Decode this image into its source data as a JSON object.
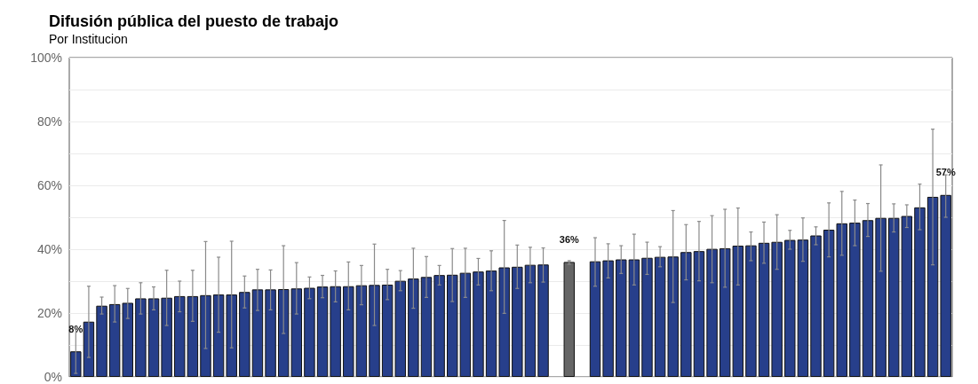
{
  "chart_data": {
    "type": "bar",
    "title": "Difusión pública del puesto de trabajo",
    "subtitle": "Por Institucion",
    "categories": [
      null,
      null,
      null,
      null,
      null,
      null,
      null,
      null,
      null,
      null,
      null,
      null,
      null,
      null,
      null,
      null,
      null,
      null,
      null,
      null,
      null,
      null,
      null,
      null,
      null,
      null,
      null,
      null,
      null,
      null,
      null,
      null,
      null,
      null,
      null,
      null,
      null,
      null,
      null,
      null,
      null,
      null,
      null,
      null,
      null,
      null,
      null,
      null,
      null,
      null,
      null,
      null,
      null,
      null,
      null,
      null,
      null,
      null,
      null,
      null,
      null,
      null,
      null,
      null,
      null,
      null,
      null,
      null
    ],
    "values": [
      8,
      17.3,
      22.3,
      22.8,
      23.2,
      24.6,
      24.6,
      24.8,
      25.3,
      25.3,
      25.6,
      25.8,
      25.8,
      26.6,
      27.4,
      27.4,
      27.5,
      27.7,
      27.9,
      28.3,
      28.4,
      28.4,
      28.7,
      28.8,
      28.9,
      30.1,
      30.8,
      31.3,
      31.9,
      32.0,
      32.6,
      33.0,
      33.3,
      34.3,
      34.5,
      35.1,
      35.2,
      null,
      36,
      null,
      36.2,
      36.5,
      36.8,
      36.8,
      37.3,
      37.6,
      37.7,
      39.1,
      39.4,
      40.1,
      40.3,
      41.1,
      41.2,
      42.0,
      42.3,
      42.9,
      43.0,
      44.3,
      46.1,
      48.1,
      48.3,
      49.1,
      49.8,
      49.8,
      50.4,
      53.1,
      56.4,
      57
    ],
    "colors": [
      "#273f8b",
      "#273f8b",
      "#273f8b",
      "#273f8b",
      "#273f8b",
      "#273f8b",
      "#273f8b",
      "#273f8b",
      "#273f8b",
      "#273f8b",
      "#273f8b",
      "#273f8b",
      "#273f8b",
      "#273f8b",
      "#273f8b",
      "#273f8b",
      "#273f8b",
      "#273f8b",
      "#273f8b",
      "#273f8b",
      "#273f8b",
      "#273f8b",
      "#273f8b",
      "#273f8b",
      "#273f8b",
      "#273f8b",
      "#273f8b",
      "#273f8b",
      "#273f8b",
      "#273f8b",
      "#273f8b",
      "#273f8b",
      "#273f8b",
      "#273f8b",
      "#273f8b",
      "#273f8b",
      "#273f8b",
      null,
      "#666666",
      null,
      "#273f8b",
      "#273f8b",
      "#273f8b",
      "#273f8b",
      "#273f8b",
      "#273f8b",
      "#273f8b",
      "#273f8b",
      "#273f8b",
      "#273f8b",
      "#273f8b",
      "#273f8b",
      "#273f8b",
      "#273f8b",
      "#273f8b",
      "#273f8b",
      "#273f8b",
      "#273f8b",
      "#273f8b",
      "#273f8b",
      "#273f8b",
      "#273f8b",
      "#273f8b",
      "#273f8b",
      "#273f8b",
      "#273f8b",
      "#273f8b",
      "#273f8b"
    ],
    "errors": [
      [
        1.1,
        15.2
      ],
      [
        6.1,
        28.4
      ],
      [
        19.7,
        25
      ],
      [
        17.2,
        28.6
      ],
      [
        18.3,
        27.7
      ],
      [
        19.7,
        29.5
      ],
      [
        21,
        28.2
      ],
      [
        16.1,
        33.4
      ],
      [
        20.4,
        30
      ],
      [
        17.4,
        33.4
      ],
      [
        8.9,
        42.4
      ],
      [
        14,
        37.5
      ],
      [
        9.1,
        42.5
      ],
      [
        21.6,
        31.6
      ],
      [
        20.8,
        33.7
      ],
      [
        21,
        33.5
      ],
      [
        13.6,
        41.1
      ],
      [
        19.7,
        35.8
      ],
      [
        24.5,
        31.3
      ],
      [
        24.8,
        31.8
      ],
      [
        23.5,
        33.2
      ],
      [
        21,
        36
      ],
      [
        22.6,
        34.9
      ],
      [
        16.1,
        41.6
      ],
      [
        24.2,
        33.7
      ],
      [
        27,
        33.3
      ],
      [
        21.5,
        40.3
      ],
      [
        24.9,
        37.7
      ],
      [
        28.8,
        34.9
      ],
      [
        23.6,
        40.2
      ],
      [
        24.9,
        40.3
      ],
      [
        28.8,
        37.1
      ],
      [
        27,
        39.5
      ],
      [
        19.9,
        49
      ],
      [
        27.7,
        41.3
      ],
      [
        29.5,
        40.6
      ],
      [
        29.7,
        40.4
      ],
      null,
      [
        35.3,
        36.4
      ],
      null,
      [
        28.4,
        43.6
      ],
      [
        31,
        41.7
      ],
      [
        32.4,
        41.1
      ],
      [
        28.8,
        44.7
      ],
      [
        32.1,
        42.2
      ],
      [
        34.5,
        40.8
      ],
      [
        23.3,
        52.1
      ],
      [
        30.4,
        47.7
      ],
      [
        30.1,
        48.7
      ],
      [
        29.5,
        50.5
      ],
      [
        28.1,
        52.5
      ],
      [
        28.8,
        52.9
      ],
      [
        36.4,
        45.4
      ],
      [
        35.6,
        48.5
      ],
      [
        33.7,
        50.8
      ],
      [
        40,
        45.9
      ],
      [
        36.2,
        49.8
      ],
      [
        41.4,
        47
      ],
      [
        37.6,
        54.5
      ],
      [
        38.1,
        58.1
      ],
      [
        41.1,
        55.4
      ],
      [
        44,
        54.3
      ],
      [
        33.1,
        66.4
      ],
      [
        45.4,
        54.2
      ],
      [
        46.8,
        53.9
      ],
      [
        46.1,
        60.4
      ],
      [
        35.1,
        77.6
      ],
      [
        50,
        63.3
      ]
    ],
    "value_labels": [
      "8%",
      null,
      null,
      null,
      null,
      null,
      null,
      null,
      null,
      null,
      null,
      null,
      null,
      null,
      null,
      null,
      null,
      null,
      null,
      null,
      null,
      null,
      null,
      null,
      null,
      null,
      null,
      null,
      null,
      null,
      null,
      null,
      null,
      null,
      null,
      null,
      null,
      null,
      "36%",
      null,
      null,
      null,
      null,
      null,
      null,
      null,
      null,
      null,
      null,
      null,
      null,
      null,
      null,
      null,
      null,
      null,
      null,
      null,
      null,
      null,
      null,
      null,
      null,
      null,
      null,
      null,
      null,
      "57%"
    ],
    "ylim": [
      0,
      100
    ],
    "yticks": [
      {
        "value": 0,
        "label": "0%"
      },
      {
        "value": 10,
        "label": null
      },
      {
        "value": 20,
        "label": "20%"
      },
      {
        "value": 30,
        "label": null
      },
      {
        "value": 40,
        "label": "40%"
      },
      {
        "value": 50,
        "label": null
      },
      {
        "value": 60,
        "label": "60%"
      },
      {
        "value": 70,
        "label": null
      },
      {
        "value": 80,
        "label": "80%"
      },
      {
        "value": 90,
        "label": null
      },
      {
        "value": 100,
        "label": "100%"
      }
    ],
    "grid": "y",
    "tick_labels": "y"
  }
}
